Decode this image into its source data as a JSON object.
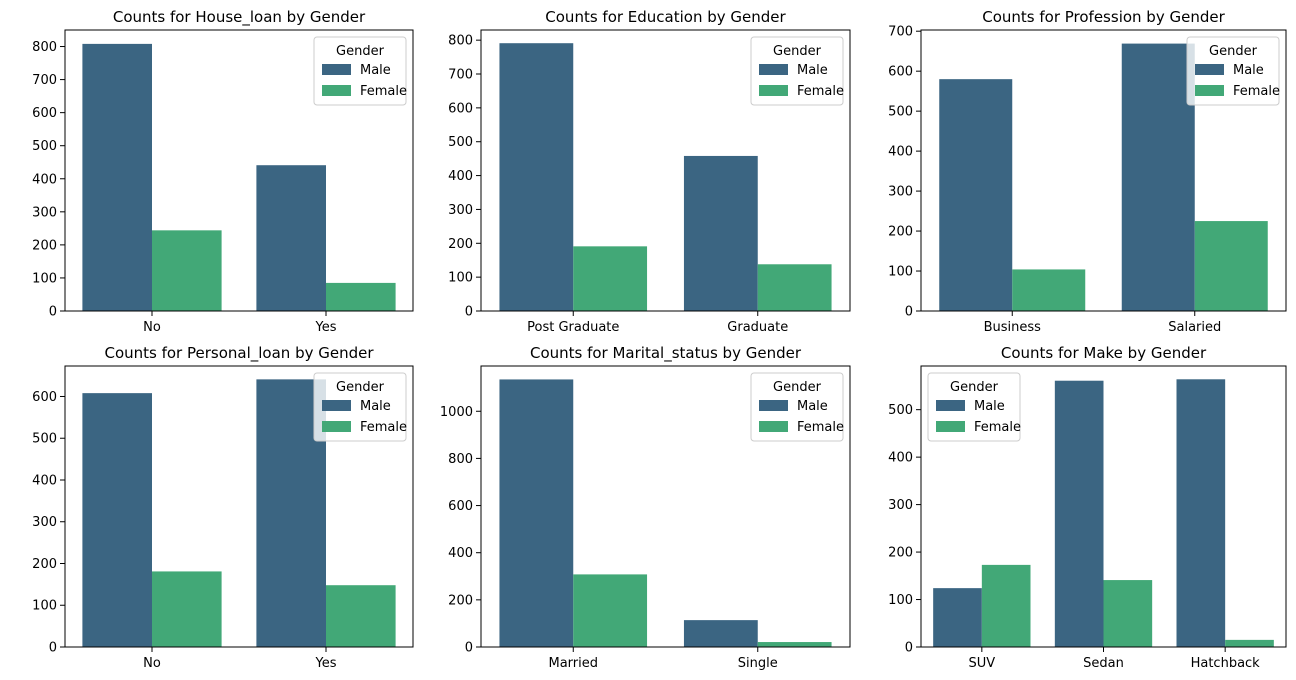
{
  "colors": {
    "male": "#3b6582",
    "female": "#42a877"
  },
  "chart_data": [
    {
      "type": "bar",
      "title": "Counts for House_loan by Gender",
      "categories": [
        "No",
        "Yes"
      ],
      "series": [
        {
          "name": "Male",
          "values": [
            808,
            441
          ]
        },
        {
          "name": "Female",
          "values": [
            244,
            85
          ]
        }
      ],
      "ylim": [
        0,
        850
      ],
      "yticks": [
        0,
        100,
        200,
        300,
        400,
        500,
        600,
        700,
        800
      ],
      "legend": {
        "title": "Gender",
        "position": "top-right"
      }
    },
    {
      "type": "bar",
      "title": "Counts for Education by Gender",
      "categories": [
        "Post Graduate",
        "Graduate"
      ],
      "series": [
        {
          "name": "Male",
          "values": [
            791,
            458
          ]
        },
        {
          "name": "Female",
          "values": [
            191,
            138
          ]
        }
      ],
      "ylim": [
        0,
        830
      ],
      "yticks": [
        0,
        100,
        200,
        300,
        400,
        500,
        600,
        700,
        800
      ],
      "legend": {
        "title": "Gender",
        "position": "top-right"
      }
    },
    {
      "type": "bar",
      "title": "Counts for Profession by Gender",
      "categories": [
        "Business",
        "Salaried"
      ],
      "series": [
        {
          "name": "Male",
          "values": [
            580,
            669
          ]
        },
        {
          "name": "Female",
          "values": [
            104,
            225
          ]
        }
      ],
      "ylim": [
        0,
        703
      ],
      "yticks": [
        0,
        100,
        200,
        300,
        400,
        500,
        600,
        700
      ],
      "legend": {
        "title": "Gender",
        "position": "top-right"
      }
    },
    {
      "type": "bar",
      "title": "Counts for Personal_loan by Gender",
      "categories": [
        "No",
        "Yes"
      ],
      "series": [
        {
          "name": "Male",
          "values": [
            608,
            641
          ]
        },
        {
          "name": "Female",
          "values": [
            181,
            148
          ]
        }
      ],
      "ylim": [
        0,
        673
      ],
      "yticks": [
        0,
        100,
        200,
        300,
        400,
        500,
        600
      ],
      "legend": {
        "title": "Gender",
        "position": "top-right"
      }
    },
    {
      "type": "bar",
      "title": "Counts for Marital_status by Gender",
      "categories": [
        "Married",
        "Single"
      ],
      "series": [
        {
          "name": "Male",
          "values": [
            1135,
            114
          ]
        },
        {
          "name": "Female",
          "values": [
            308,
            21
          ]
        }
      ],
      "ylim": [
        0,
        1192
      ],
      "yticks": [
        0,
        200,
        400,
        600,
        800,
        1000
      ],
      "legend": {
        "title": "Gender",
        "position": "top-right"
      }
    },
    {
      "type": "bar",
      "title": "Counts for Make by Gender",
      "categories": [
        "SUV",
        "Sedan",
        "Hatchback"
      ],
      "series": [
        {
          "name": "Male",
          "values": [
            124,
            561,
            564
          ]
        },
        {
          "name": "Female",
          "values": [
            173,
            141,
            15
          ]
        }
      ],
      "ylim": [
        0,
        592
      ],
      "yticks": [
        0,
        100,
        200,
        300,
        400,
        500
      ],
      "legend": {
        "title": "Gender",
        "position": "top-left"
      }
    }
  ]
}
